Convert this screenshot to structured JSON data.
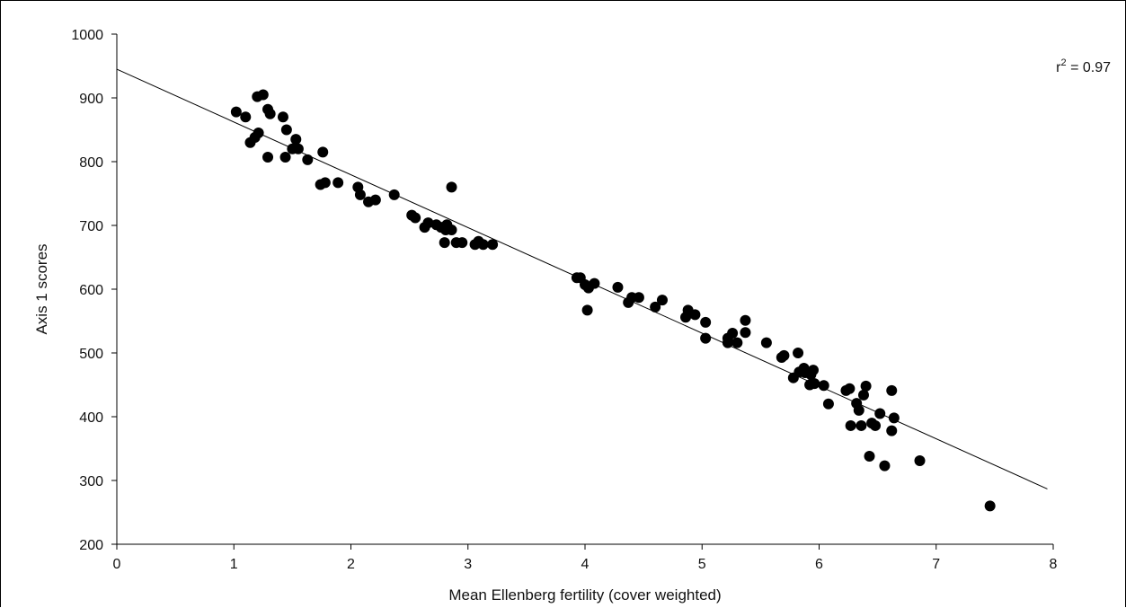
{
  "chart_data": {
    "type": "scatter",
    "title": "",
    "xlabel": "Mean Ellenberg fertility (cover weighted)",
    "ylabel": "Axis 1 scores",
    "xlim": [
      0,
      8
    ],
    "ylim": [
      200,
      1000
    ],
    "xticks": [
      "0",
      "1",
      "2",
      "3",
      "4",
      "5",
      "6",
      "7",
      "8"
    ],
    "yticks": [
      "200",
      "300",
      "400",
      "500",
      "600",
      "700",
      "800",
      "900",
      "1000"
    ],
    "grid": false,
    "legend": "none",
    "annotation": {
      "base": "r",
      "sup": "2",
      "rest": " = 0.97",
      "position": "top-right"
    },
    "regression_line": {
      "intercept": 945,
      "slope": -82.8,
      "x_range": [
        0,
        7.95
      ]
    },
    "marker_color": "#000000",
    "points": [
      {
        "x": 1.02,
        "y": 878
      },
      {
        "x": 1.1,
        "y": 870
      },
      {
        "x": 1.14,
        "y": 830
      },
      {
        "x": 1.18,
        "y": 838
      },
      {
        "x": 1.21,
        "y": 845
      },
      {
        "x": 1.2,
        "y": 902
      },
      {
        "x": 1.25,
        "y": 905
      },
      {
        "x": 1.29,
        "y": 882
      },
      {
        "x": 1.31,
        "y": 875
      },
      {
        "x": 1.29,
        "y": 807
      },
      {
        "x": 1.42,
        "y": 870
      },
      {
        "x": 1.45,
        "y": 850
      },
      {
        "x": 1.44,
        "y": 807
      },
      {
        "x": 1.53,
        "y": 835
      },
      {
        "x": 1.5,
        "y": 820
      },
      {
        "x": 1.55,
        "y": 820
      },
      {
        "x": 1.63,
        "y": 803
      },
      {
        "x": 1.76,
        "y": 815
      },
      {
        "x": 1.74,
        "y": 764
      },
      {
        "x": 1.78,
        "y": 767
      },
      {
        "x": 1.89,
        "y": 767
      },
      {
        "x": 2.06,
        "y": 760
      },
      {
        "x": 2.08,
        "y": 748
      },
      {
        "x": 2.15,
        "y": 737
      },
      {
        "x": 2.21,
        "y": 740
      },
      {
        "x": 2.37,
        "y": 748
      },
      {
        "x": 2.52,
        "y": 716
      },
      {
        "x": 2.55,
        "y": 712
      },
      {
        "x": 2.63,
        "y": 697
      },
      {
        "x": 2.66,
        "y": 704
      },
      {
        "x": 2.73,
        "y": 701
      },
      {
        "x": 2.77,
        "y": 697
      },
      {
        "x": 2.82,
        "y": 701
      },
      {
        "x": 2.81,
        "y": 693
      },
      {
        "x": 2.86,
        "y": 693
      },
      {
        "x": 2.86,
        "y": 760
      },
      {
        "x": 2.8,
        "y": 673
      },
      {
        "x": 2.9,
        "y": 673
      },
      {
        "x": 2.95,
        "y": 673
      },
      {
        "x": 3.06,
        "y": 670
      },
      {
        "x": 3.09,
        "y": 675
      },
      {
        "x": 3.13,
        "y": 670
      },
      {
        "x": 3.21,
        "y": 670
      },
      {
        "x": 3.93,
        "y": 618
      },
      {
        "x": 3.96,
        "y": 618
      },
      {
        "x": 4.0,
        "y": 607
      },
      {
        "x": 4.03,
        "y": 602
      },
      {
        "x": 4.08,
        "y": 609
      },
      {
        "x": 4.02,
        "y": 567
      },
      {
        "x": 4.28,
        "y": 603
      },
      {
        "x": 4.37,
        "y": 579
      },
      {
        "x": 4.4,
        "y": 587
      },
      {
        "x": 4.46,
        "y": 587
      },
      {
        "x": 4.6,
        "y": 572
      },
      {
        "x": 4.66,
        "y": 583
      },
      {
        "x": 4.86,
        "y": 556
      },
      {
        "x": 4.88,
        "y": 567
      },
      {
        "x": 4.94,
        "y": 560
      },
      {
        "x": 5.03,
        "y": 548
      },
      {
        "x": 5.03,
        "y": 523
      },
      {
        "x": 5.22,
        "y": 516
      },
      {
        "x": 5.22,
        "y": 523
      },
      {
        "x": 5.26,
        "y": 531
      },
      {
        "x": 5.3,
        "y": 516
      },
      {
        "x": 5.37,
        "y": 551
      },
      {
        "x": 5.37,
        "y": 532
      },
      {
        "x": 5.55,
        "y": 516
      },
      {
        "x": 5.68,
        "y": 493
      },
      {
        "x": 5.7,
        "y": 496
      },
      {
        "x": 5.82,
        "y": 500
      },
      {
        "x": 5.78,
        "y": 461
      },
      {
        "x": 5.83,
        "y": 470
      },
      {
        "x": 5.87,
        "y": 476
      },
      {
        "x": 5.88,
        "y": 469
      },
      {
        "x": 5.93,
        "y": 466
      },
      {
        "x": 5.95,
        "y": 473
      },
      {
        "x": 5.92,
        "y": 450
      },
      {
        "x": 5.96,
        "y": 452
      },
      {
        "x": 6.04,
        "y": 449
      },
      {
        "x": 6.08,
        "y": 420
      },
      {
        "x": 6.23,
        "y": 441
      },
      {
        "x": 6.26,
        "y": 444
      },
      {
        "x": 6.27,
        "y": 386
      },
      {
        "x": 6.32,
        "y": 421
      },
      {
        "x": 6.34,
        "y": 410
      },
      {
        "x": 6.36,
        "y": 386
      },
      {
        "x": 6.38,
        "y": 434
      },
      {
        "x": 6.4,
        "y": 448
      },
      {
        "x": 6.45,
        "y": 390
      },
      {
        "x": 6.48,
        "y": 386
      },
      {
        "x": 6.43,
        "y": 338
      },
      {
        "x": 6.52,
        "y": 405
      },
      {
        "x": 6.56,
        "y": 323
      },
      {
        "x": 6.62,
        "y": 441
      },
      {
        "x": 6.64,
        "y": 398
      },
      {
        "x": 6.62,
        "y": 378
      },
      {
        "x": 6.86,
        "y": 331
      },
      {
        "x": 7.46,
        "y": 260
      }
    ]
  }
}
